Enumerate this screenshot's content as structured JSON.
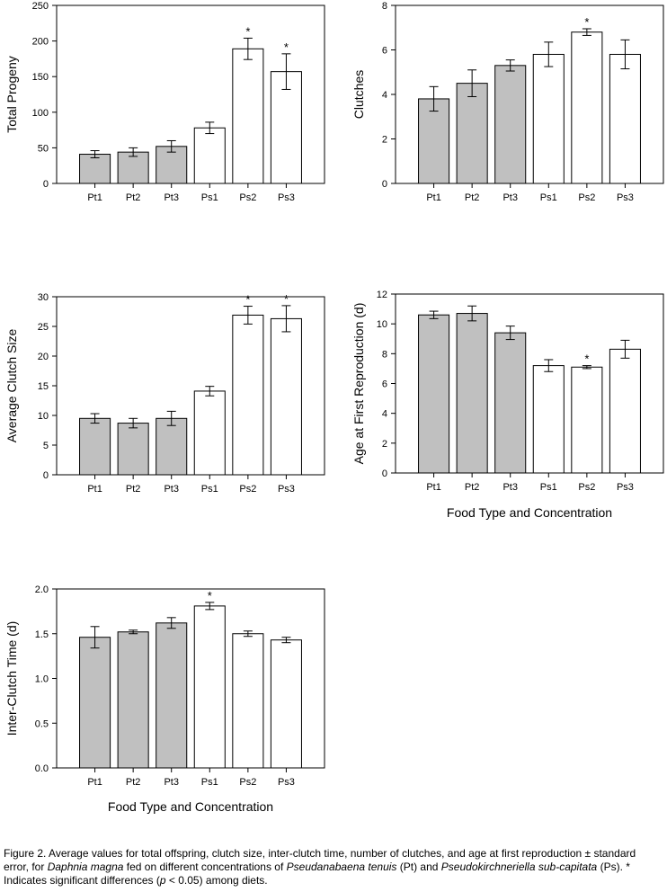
{
  "chart_data": [
    {
      "id": "total-progeny",
      "type": "bar",
      "title": "",
      "xlabel": "",
      "ylabel": "Total Progeny",
      "categories": [
        "Pt1",
        "Pt2",
        "Pt3",
        "Ps1",
        "Ps2",
        "Ps3"
      ],
      "groups": [
        "Pt",
        "Pt",
        "Pt",
        "Ps",
        "Ps",
        "Ps"
      ],
      "values": [
        41,
        44,
        52,
        78,
        189,
        157
      ],
      "errors": [
        5,
        6,
        8,
        8,
        15,
        25
      ],
      "significant": [
        false,
        false,
        false,
        false,
        true,
        true
      ],
      "ylim": [
        0,
        250
      ],
      "yticks": [
        0,
        50,
        100,
        150,
        200,
        250
      ],
      "ytick_labels": [
        "0",
        "50",
        "100",
        "150",
        "200",
        "250"
      ]
    },
    {
      "id": "clutches",
      "type": "bar",
      "title": "",
      "xlabel": "",
      "ylabel": "Clutches",
      "categories": [
        "Pt1",
        "Pt2",
        "Pt3",
        "Ps1",
        "Ps2",
        "Ps3"
      ],
      "groups": [
        "Pt",
        "Pt",
        "Pt",
        "Ps",
        "Ps",
        "Ps"
      ],
      "values": [
        3.8,
        4.5,
        5.3,
        5.8,
        6.8,
        5.8
      ],
      "errors": [
        0.55,
        0.6,
        0.25,
        0.55,
        0.15,
        0.65
      ],
      "significant": [
        false,
        false,
        false,
        false,
        true,
        false
      ],
      "ylim": [
        0,
        8
      ],
      "yticks": [
        0,
        2,
        4,
        6,
        8
      ],
      "ytick_labels": [
        "0",
        "2",
        "4",
        "6",
        "8"
      ]
    },
    {
      "id": "average-clutch-size",
      "type": "bar",
      "title": "",
      "xlabel": "",
      "ylabel": "Average Clutch Size",
      "categories": [
        "Pt1",
        "Pt2",
        "Pt3",
        "Ps1",
        "Ps2",
        "Ps3"
      ],
      "groups": [
        "Pt",
        "Pt",
        "Pt",
        "Ps",
        "Ps",
        "Ps"
      ],
      "values": [
        9.5,
        8.7,
        9.5,
        14.1,
        26.9,
        26.3
      ],
      "errors": [
        0.8,
        0.8,
        1.2,
        0.8,
        1.5,
        2.2
      ],
      "significant": [
        false,
        false,
        false,
        false,
        true,
        true
      ],
      "ylim": [
        0,
        30
      ],
      "yticks": [
        0,
        5,
        10,
        15,
        20,
        25,
        30
      ],
      "ytick_labels": [
        "0",
        "5",
        "10",
        "15",
        "20",
        "25",
        "30"
      ]
    },
    {
      "id": "age-first-reproduction",
      "type": "bar",
      "title": "",
      "xlabel": "Food Type and Concentration",
      "ylabel": "Age at First Reproduction (d)",
      "categories": [
        "Pt1",
        "Pt2",
        "Pt3",
        "Ps1",
        "Ps2",
        "Ps3"
      ],
      "groups": [
        "Pt",
        "Pt",
        "Pt",
        "Ps",
        "Ps",
        "Ps"
      ],
      "values": [
        10.6,
        10.7,
        9.4,
        7.2,
        7.1,
        8.3
      ],
      "errors": [
        0.25,
        0.5,
        0.45,
        0.4,
        0.1,
        0.6
      ],
      "significant": [
        false,
        false,
        false,
        false,
        true,
        false
      ],
      "ylim": [
        0,
        12
      ],
      "yticks": [
        0,
        2,
        4,
        6,
        8,
        10,
        12
      ],
      "ytick_labels": [
        "0",
        "2",
        "4",
        "6",
        "8",
        "10",
        "12"
      ]
    },
    {
      "id": "inter-clutch-time",
      "type": "bar",
      "title": "",
      "xlabel": "Food Type and Concentration",
      "ylabel": "Inter-Clutch Time (d)",
      "categories": [
        "Pt1",
        "Pt2",
        "Pt3",
        "Ps1",
        "Ps2",
        "Ps3"
      ],
      "groups": [
        "Pt",
        "Pt",
        "Pt",
        "Ps",
        "Ps",
        "Ps"
      ],
      "values": [
        1.46,
        1.52,
        1.62,
        1.81,
        1.5,
        1.43
      ],
      "errors": [
        0.12,
        0.02,
        0.06,
        0.04,
        0.03,
        0.03
      ],
      "significant": [
        false,
        false,
        false,
        true,
        false,
        false
      ],
      "ylim": [
        0,
        2.0
      ],
      "yticks": [
        0,
        0.5,
        1.0,
        1.5,
        2.0
      ],
      "ytick_labels": [
        "0.0",
        "0.5",
        "1.0",
        "1.5",
        "2.0"
      ]
    }
  ],
  "significance_marker": "*",
  "colors": {
    "pt_fill": "#c0c0c0",
    "ps_fill": "#ffffff",
    "stroke": "#000000"
  },
  "caption": {
    "p1": "Figure 2. Average values for total offspring, clutch size, inter-clutch time, number of clutches, and age at first reproduction ± standard error, for ",
    "species1": "Daphnia magna",
    "p2": " fed on different concentrations of ",
    "species2": "Pseudanabaena tenuis",
    "p3": " (Pt) and ",
    "species3": "Pseudokirchneriella sub-capitata",
    "p4": " (Ps). * Indicates significant differences (",
    "pvar": "p",
    "p5": " < 0.05) among diets."
  }
}
